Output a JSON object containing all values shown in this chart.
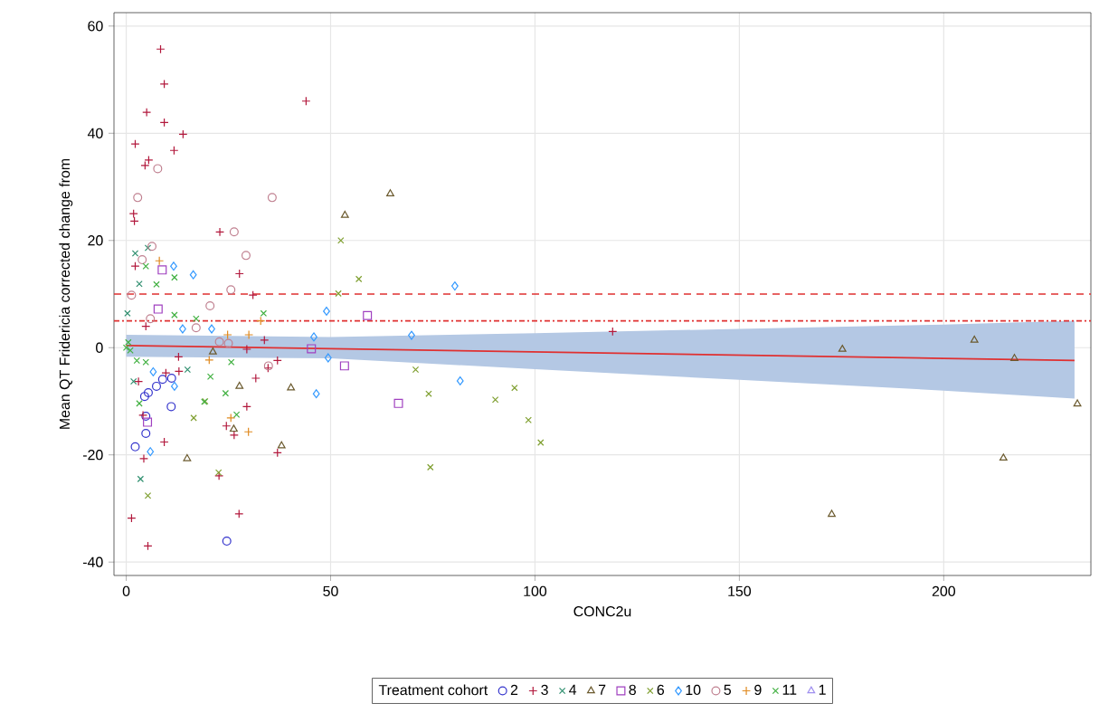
{
  "chart_data": {
    "type": "scatter",
    "xlabel": "CONC2u",
    "ylabel": "Mean QT Fridericia corrected change from",
    "legend_title": "Treatment cohort",
    "xlim": [
      -3,
      236
    ],
    "ylim": [
      -42.5,
      62.5
    ],
    "xticks": [
      0,
      50,
      100,
      150,
      200
    ],
    "yticks": [
      -40,
      -20,
      0,
      20,
      40,
      60
    ],
    "grid": true,
    "legend": "bottom",
    "ref_lines": [
      {
        "axis": "y",
        "value": 10,
        "color": "#e03030",
        "line_style": "dashed"
      },
      {
        "axis": "y",
        "value": 5,
        "color": "#e03030",
        "line_style": "dotted"
      }
    ],
    "series": [
      {
        "name": "2",
        "color": "#3333cc",
        "marker": "circle",
        "x": [
          2.2,
          24.6,
          11.1,
          11,
          4.8,
          4.8,
          5.4,
          4.5,
          7.4,
          8.9
        ],
        "values": [
          -18.5,
          -36.1,
          -5.7,
          -11,
          -12.8,
          -16,
          -8.4,
          -9.1,
          -7.2,
          -5.9
        ]
      },
      {
        "name": "3",
        "color": "#b2183c",
        "marker": "plus",
        "x": [
          8.4,
          5,
          9.3,
          13.9,
          11.7,
          2.2,
          4.6,
          5.5,
          1.8,
          2,
          44,
          22.9,
          27.7,
          31,
          2.2,
          4.8,
          33.8,
          29.5,
          3,
          12.8,
          12.9,
          31.7,
          29.5,
          34.7,
          37,
          4.1,
          9.7,
          4.3,
          24.5,
          26.4,
          37,
          22.7,
          27.6,
          5.3,
          119,
          1.3,
          9.3,
          9.3
        ],
        "values": [
          55.7,
          43.9,
          42,
          39.8,
          36.8,
          38,
          34,
          35,
          25,
          23.6,
          46,
          21.6,
          13.8,
          9.8,
          15.2,
          4,
          1.4,
          -0.3,
          -6.3,
          -1.7,
          -4.4,
          -5.7,
          -11,
          -3.8,
          -2.4,
          -12.6,
          -4.7,
          -20.7,
          -14.6,
          -16.3,
          -19.6,
          -23.9,
          -31,
          -37,
          3,
          -31.8,
          49.2,
          -17.6
        ]
      },
      {
        "name": "4",
        "color": "#2f8f6f",
        "marker": "cross",
        "x": [
          2.2,
          5.3,
          3.2,
          1.8,
          3.5,
          15,
          0.3
        ],
        "values": [
          17.6,
          18.6,
          11.9,
          -6.3,
          -24.5,
          -4.1,
          6.4
        ]
      },
      {
        "name": "7",
        "color": "#6b5a2e",
        "marker": "triangle",
        "x": [
          64.6,
          53.5,
          40.3,
          27.7,
          14.9,
          38,
          26.3,
          21.2,
          175.2,
          207.5,
          217.3,
          232.7,
          214.6,
          172.6
        ],
        "values": [
          28.7,
          24.7,
          -7.5,
          -7.2,
          -20.7,
          -18.3,
          -15.2,
          -0.8,
          -0.3,
          1.4,
          -2,
          -10.5,
          -20.6,
          -31.1
        ]
      },
      {
        "name": "8",
        "color": "#a040c0",
        "marker": "square",
        "x": [
          8.8,
          7.8,
          59,
          45.3,
          53.4,
          66.6,
          5.2
        ],
        "values": [
          14.5,
          7.2,
          6,
          -0.2,
          -3.4,
          -10.4,
          -13.9
        ]
      },
      {
        "name": "6",
        "color": "#7f9f30",
        "marker": "cross",
        "x": [
          52.5,
          56.9,
          51.9,
          70.8,
          74,
          95,
          90.3,
          98.4,
          101.4,
          74.4,
          5.3,
          16.5,
          19.3,
          22.6
        ],
        "values": [
          20,
          12.8,
          10.1,
          -4.1,
          -8.6,
          -7.5,
          -9.7,
          -13.5,
          -17.7,
          -22.3,
          -27.6,
          -13.1,
          -10,
          -23.3
        ]
      },
      {
        "name": "10",
        "color": "#3399ff",
        "marker": "diamond",
        "x": [
          11.6,
          16.4,
          13.8,
          49,
          45.9,
          49.4,
          46.5,
          69.8,
          80.4,
          81.7,
          5.9,
          6.6,
          11.8,
          20.9
        ],
        "values": [
          15.2,
          13.6,
          3.5,
          6.8,
          2,
          -1.9,
          -8.6,
          2.3,
          11.5,
          -6.2,
          -19.4,
          -4.5,
          -7.2,
          3.5
        ]
      },
      {
        "name": "5",
        "color": "#c08090",
        "marker": "circle",
        "x": [
          7.7,
          2.8,
          35.7,
          6.3,
          26.4,
          29.3,
          25.6,
          1.3,
          20.5,
          5.9,
          17.1,
          22.8,
          25,
          34.8,
          3.9
        ],
        "values": [
          33.4,
          28,
          28,
          18.9,
          21.6,
          17.2,
          10.8,
          9.8,
          7.8,
          5.4,
          3.7,
          1.1,
          0.8,
          -3.4,
          16.4
        ]
      },
      {
        "name": "9",
        "color": "#e08a20",
        "marker": "plus",
        "x": [
          8.1,
          32.9,
          29.9,
          25.6,
          30,
          20.3,
          24.8
        ],
        "values": [
          16.2,
          5,
          -15.7,
          -13.1,
          2.4,
          -2.3,
          2.4
        ]
      },
      {
        "name": "11",
        "color": "#40b040",
        "marker": "cross",
        "x": [
          4.8,
          7.4,
          3.2,
          11.8,
          11.8,
          17.1,
          2.6,
          4.8,
          19.1,
          25.7,
          27,
          24.3,
          33.6,
          20.6,
          0,
          1,
          0.5
        ],
        "values": [
          15.2,
          11.8,
          -10.4,
          13.1,
          6.1,
          5.4,
          -2.4,
          -2.7,
          -10.1,
          -2.7,
          -12.5,
          -8.5,
          6.4,
          -5.4,
          0,
          -0.5,
          1
        ]
      },
      {
        "name": "1",
        "color": "#9f8fef",
        "marker": "triangle"
      },
      {
        "type": "line",
        "color": "#e03030",
        "marker": "none",
        "x": [
          0,
          50,
          100,
          150,
          200,
          232
        ],
        "values": [
          0.4,
          -0.2,
          -0.8,
          -1.4,
          -2.0,
          -2.4
        ],
        "lower": [
          -1.7,
          -2,
          -4,
          -6,
          -8,
          -9.5
        ],
        "upper": [
          2.4,
          2,
          2.7,
          3.5,
          4.3,
          5
        ]
      }
    ]
  }
}
